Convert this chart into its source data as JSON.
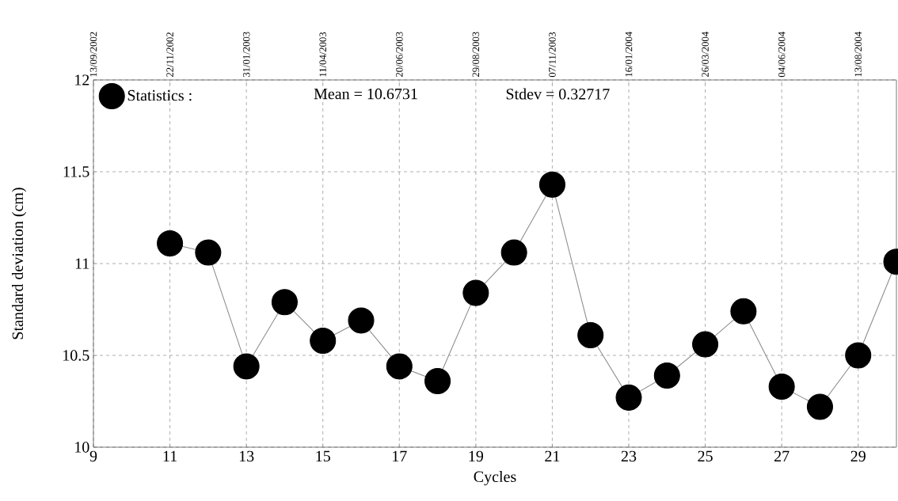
{
  "chart_data": {
    "type": "line",
    "xlabel": "Cycles",
    "ylabel": "Standard deviation (cm)",
    "x": [
      11,
      12,
      13,
      14,
      15,
      16,
      17,
      18,
      19,
      20,
      21,
      22,
      23,
      24,
      25,
      26,
      27,
      28,
      29,
      30
    ],
    "series": [
      {
        "name": "Statistics :",
        "color": "#000000",
        "values": [
          11.11,
          11.06,
          10.44,
          10.79,
          10.58,
          10.69,
          10.44,
          10.36,
          10.84,
          11.06,
          11.43,
          10.61,
          10.27,
          10.39,
          10.56,
          10.74,
          10.33,
          10.22,
          10.5,
          11.01
        ]
      }
    ],
    "xlim": [
      9,
      30
    ],
    "ylim": [
      10,
      12
    ],
    "xticks": [
      9,
      11,
      13,
      15,
      17,
      19,
      21,
      23,
      25,
      27,
      29
    ],
    "yticks": [
      10,
      10.5,
      11,
      11.5,
      12
    ],
    "x2lim": [
      "2002-09-13",
      "2004-09-17"
    ],
    "x2ticks": [
      {
        "value": "2002-09-13",
        "label": "13/09/2002"
      },
      {
        "value": "2002-11-22",
        "label": "22/11/2002"
      },
      {
        "value": "2003-01-31",
        "label": "31/01/2003"
      },
      {
        "value": "2003-04-11",
        "label": "11/04/2003"
      },
      {
        "value": "2003-06-20",
        "label": "20/06/2003"
      },
      {
        "value": "2003-08-29",
        "label": "29/08/2003"
      },
      {
        "value": "2003-11-07",
        "label": "07/11/2003"
      },
      {
        "value": "2004-01-16",
        "label": "16/01/2004"
      },
      {
        "value": "2004-03-26",
        "label": "26/03/2004"
      },
      {
        "value": "2004-06-04",
        "label": "04/06/2004"
      },
      {
        "value": "2004-08-13",
        "label": "13/08/2004"
      }
    ],
    "annotations": [
      "Mean = 10.6731",
      "Stdev = 0.32717"
    ],
    "grid": true,
    "legend": "top left",
    "marker": "circle",
    "line_style": "solid"
  }
}
